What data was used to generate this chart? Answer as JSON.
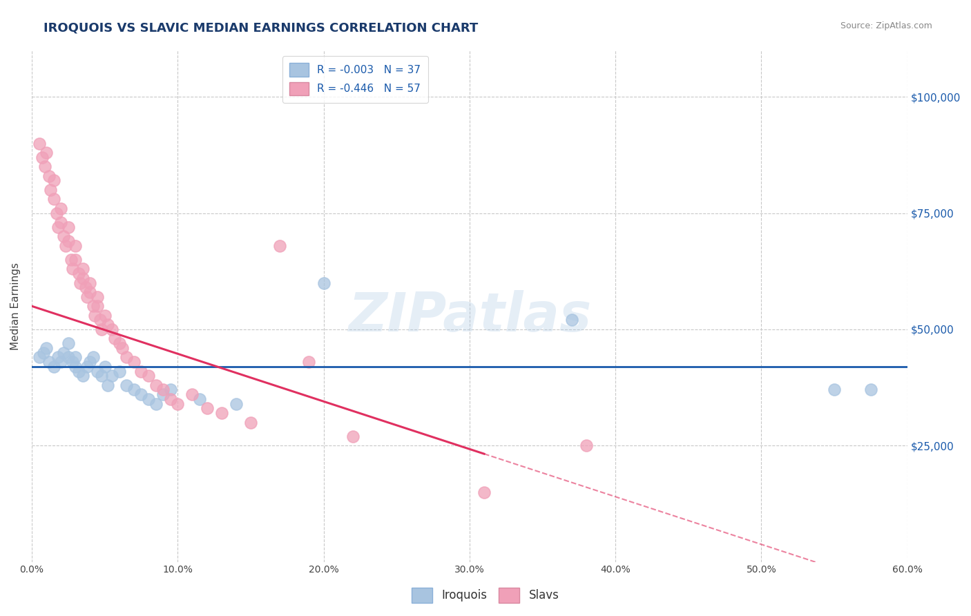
{
  "title": "IROQUOIS VS SLAVIC MEDIAN EARNINGS CORRELATION CHART",
  "title_color": "#1a3a6b",
  "ylabel": "Median Earnings",
  "source_text": "Source: ZipAtlas.com",
  "xlim": [
    0.0,
    0.6
  ],
  "ylim": [
    0,
    110000
  ],
  "yticks": [
    0,
    25000,
    50000,
    75000,
    100000
  ],
  "ytick_labels": [
    "",
    "$25,000",
    "$50,000",
    "$75,000",
    "$100,000"
  ],
  "xtick_labels": [
    "0.0%",
    "10.0%",
    "20.0%",
    "30.0%",
    "40.0%",
    "50.0%",
    "60.0%"
  ],
  "xticks": [
    0.0,
    0.1,
    0.2,
    0.3,
    0.4,
    0.5,
    0.6
  ],
  "legend_R_iroquois": "R = -0.003",
  "legend_N_iroquois": "N = 37",
  "legend_R_slavs": "R = -0.446",
  "legend_N_slavs": "N = 57",
  "iroquois_color": "#a8c4e0",
  "slavs_color": "#f0a0b8",
  "iroquois_line_color": "#1a5aab",
  "slavs_line_color": "#e03060",
  "background_color": "#ffffff",
  "grid_color": "#c8c8c8",
  "watermark": "ZIPatlas",
  "iroquois_x": [
    0.005,
    0.008,
    0.01,
    0.012,
    0.015,
    0.018,
    0.02,
    0.022,
    0.025,
    0.025,
    0.028,
    0.03,
    0.03,
    0.032,
    0.035,
    0.038,
    0.04,
    0.042,
    0.045,
    0.048,
    0.05,
    0.052,
    0.055,
    0.06,
    0.065,
    0.07,
    0.075,
    0.08,
    0.085,
    0.09,
    0.095,
    0.115,
    0.14,
    0.2,
    0.37,
    0.55,
    0.575
  ],
  "iroquois_y": [
    44000,
    45000,
    46000,
    43000,
    42000,
    44000,
    43000,
    45000,
    44000,
    47000,
    43000,
    42000,
    44000,
    41000,
    40000,
    42000,
    43000,
    44000,
    41000,
    40000,
    42000,
    38000,
    40000,
    41000,
    38000,
    37000,
    36000,
    35000,
    34000,
    36000,
    37000,
    35000,
    34000,
    60000,
    52000,
    37000,
    37000
  ],
  "slavs_x": [
    0.005,
    0.007,
    0.009,
    0.01,
    0.012,
    0.013,
    0.015,
    0.015,
    0.017,
    0.018,
    0.02,
    0.02,
    0.022,
    0.023,
    0.025,
    0.025,
    0.027,
    0.028,
    0.03,
    0.03,
    0.032,
    0.033,
    0.035,
    0.035,
    0.037,
    0.038,
    0.04,
    0.04,
    0.042,
    0.043,
    0.045,
    0.045,
    0.047,
    0.048,
    0.05,
    0.052,
    0.055,
    0.057,
    0.06,
    0.062,
    0.065,
    0.07,
    0.075,
    0.08,
    0.085,
    0.09,
    0.095,
    0.1,
    0.11,
    0.12,
    0.13,
    0.15,
    0.17,
    0.19,
    0.22,
    0.31,
    0.38
  ],
  "slavs_y": [
    90000,
    87000,
    85000,
    88000,
    83000,
    80000,
    82000,
    78000,
    75000,
    72000,
    76000,
    73000,
    70000,
    68000,
    72000,
    69000,
    65000,
    63000,
    68000,
    65000,
    62000,
    60000,
    63000,
    61000,
    59000,
    57000,
    60000,
    58000,
    55000,
    53000,
    57000,
    55000,
    52000,
    50000,
    53000,
    51000,
    50000,
    48000,
    47000,
    46000,
    44000,
    43000,
    41000,
    40000,
    38000,
    37000,
    35000,
    34000,
    36000,
    33000,
    32000,
    30000,
    68000,
    43000,
    27000,
    15000,
    25000
  ],
  "slavs_line_x0": 0.0,
  "slavs_line_y0": 55000,
  "slavs_line_x1": 0.4,
  "slavs_line_y1": 14000,
  "iroquois_line_y": 42000
}
